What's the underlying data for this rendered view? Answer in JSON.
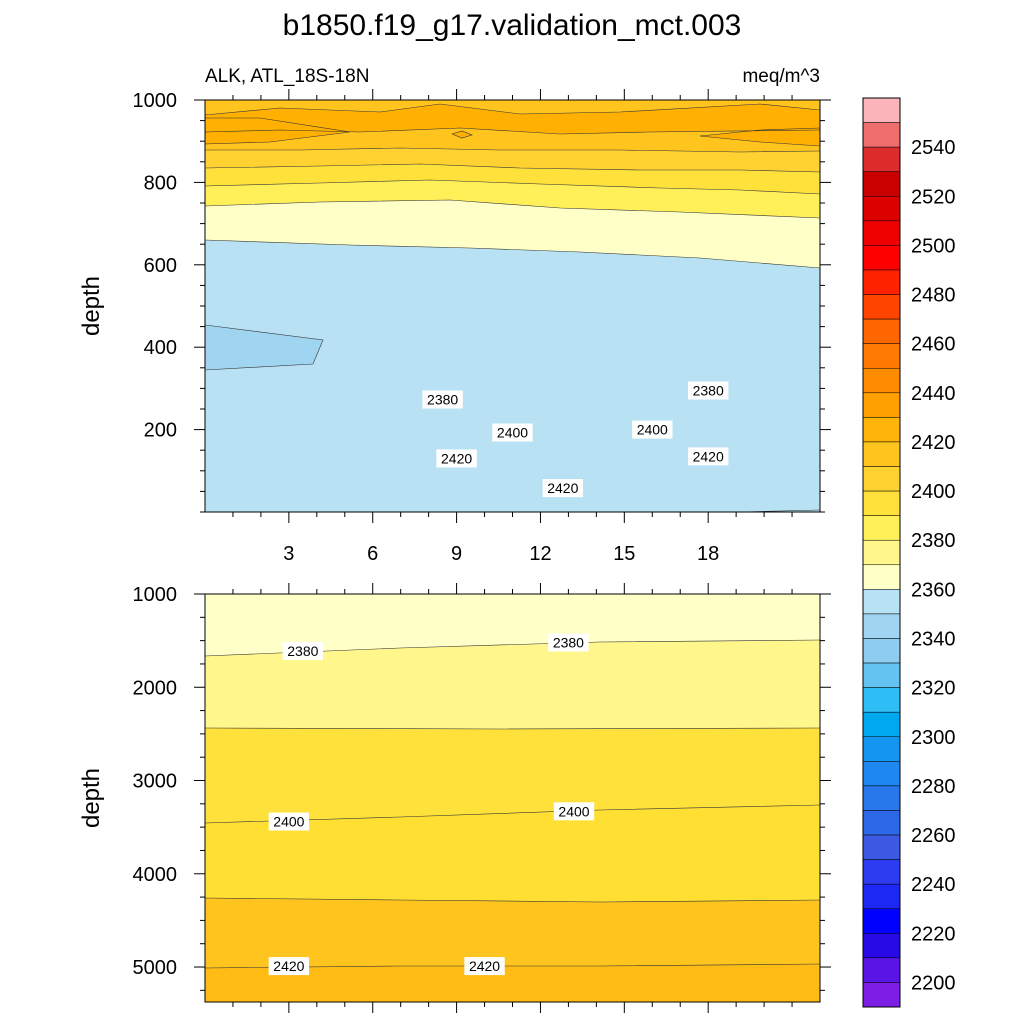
{
  "title": "b1850.f19_g17.validation_mct.003",
  "subtitle_left": "ALK, ATL_18S-18N",
  "subtitle_right": "meq/m^3",
  "chart_data": [
    {
      "type": "contour",
      "name": "upper-panel",
      "xlabel": "",
      "ylabel": "depth",
      "xlim": [
        0,
        22
      ],
      "ylim": [
        1000,
        0
      ],
      "x_ticks": [
        3,
        6,
        9,
        12,
        15,
        18
      ],
      "y_ticks": [
        200,
        400,
        600,
        800,
        1000
      ],
      "contour_labels": [
        {
          "x": 12.8,
          "depth": 58,
          "value": "2420"
        },
        {
          "x": 9,
          "depth": 130,
          "value": "2420"
        },
        {
          "x": 18,
          "depth": 135,
          "value": "2420"
        },
        {
          "x": 11,
          "depth": 193,
          "value": "2400"
        },
        {
          "x": 16,
          "depth": 200,
          "value": "2400"
        },
        {
          "x": 8.5,
          "depth": 273,
          "value": "2380"
        },
        {
          "x": 18,
          "depth": 295,
          "value": "2380"
        }
      ]
    },
    {
      "type": "contour",
      "name": "lower-panel",
      "xlabel": "",
      "ylabel": "depth",
      "xlim": [
        0,
        22
      ],
      "ylim": [
        1000,
        5375
      ],
      "x_ticks": [
        3,
        6,
        9,
        12,
        15,
        18
      ],
      "y_ticks": [
        1000,
        2000,
        3000,
        4000,
        5000
      ],
      "contour_labels": [
        {
          "x": 3.5,
          "depth": 1610,
          "value": "2380"
        },
        {
          "x": 13,
          "depth": 1520,
          "value": "2380"
        },
        {
          "x": 3,
          "depth": 3440,
          "value": "2400"
        },
        {
          "x": 13.2,
          "depth": 3330,
          "value": "2400"
        },
        {
          "x": 3,
          "depth": 4990,
          "value": "2420"
        },
        {
          "x": 10,
          "depth": 4990,
          "value": "2420"
        }
      ]
    }
  ],
  "colorbar": {
    "labels": [
      "2540",
      "2520",
      "2500",
      "2480",
      "2460",
      "2440",
      "2420",
      "2400",
      "2380",
      "2360",
      "2340",
      "2320",
      "2300",
      "2280",
      "2260",
      "2240",
      "2220",
      "2200"
    ],
    "colors": [
      "#fbb4b9",
      "#ee6e6e",
      "#dc2c2c",
      "#c80000",
      "#dc0000",
      "#ee0000",
      "#ff0000",
      "#ff2200",
      "#ff4400",
      "#ff6600",
      "#ff7a00",
      "#ff8c00",
      "#ffa000",
      "#ffb40a",
      "#ffc41e",
      "#ffd232",
      "#ffe13c",
      "#fff05a",
      "#fff78c",
      "#ffffc8",
      "#b8e2f3",
      "#a0d5f2",
      "#8ecdef",
      "#64c3f0",
      "#2ebef5",
      "#00a8f0",
      "#1496f0",
      "#1e87f0",
      "#2878eb",
      "#2d69e6",
      "#3c5ae1",
      "#2d3cf0",
      "#1e28f5",
      "#0000ff",
      "#280ae6",
      "#5a14e6",
      "#7d1ee6"
    ]
  },
  "palette": {
    "deep_orange": "#ffb000",
    "orange": "#ffc41e",
    "gold": "#ffd232",
    "yellow": "#ffe13c",
    "light_yellow": "#fff78c",
    "pale_yellow": "#ffffc8",
    "light_blue": "#b8e2f3",
    "blue": "#a0d5f2"
  }
}
